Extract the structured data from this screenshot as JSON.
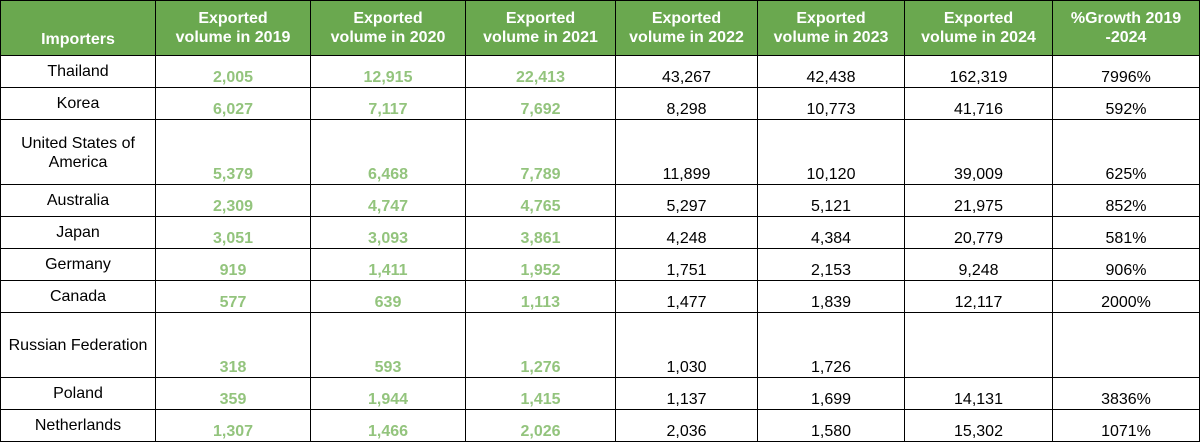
{
  "headers": [
    "Importers",
    "Exported volume in 2019",
    "Exported volume in 2020",
    "Exported volume in 2021",
    "Exported volume in 2022",
    "Exported volume in 2023",
    "Exported volume in 2024",
    "%Growth 2019 -2024"
  ],
  "header_lines": [
    [
      "Importers"
    ],
    [
      "Exported",
      "volume in 2019"
    ],
    [
      "Exported",
      "volume in 2020"
    ],
    [
      "Exported",
      "volume in 2021"
    ],
    [
      "Exported",
      "volume in 2022"
    ],
    [
      "Exported",
      "volume in 2023"
    ],
    [
      "Exported",
      "volume in 2024"
    ],
    [
      "%Growth 2019",
      "-2024"
    ]
  ],
  "rows": [
    {
      "importer": "Thailand",
      "v2019": "2,005",
      "v2020": "12,915",
      "v2021": "22,413",
      "v2022": "43,267",
      "v2023": "42,438",
      "v2024": "162,319",
      "growth": "7996%"
    },
    {
      "importer": "Korea",
      "v2019": "6,027",
      "v2020": "7,117",
      "v2021": "7,692",
      "v2022": "8,298",
      "v2023": "10,773",
      "v2024": "41,716",
      "growth": "592%"
    },
    {
      "importer": "United States of America",
      "v2019": "5,379",
      "v2020": "6,468",
      "v2021": "7,789",
      "v2022": "11,899",
      "v2023": "10,120",
      "v2024": "39,009",
      "growth": "625%"
    },
    {
      "importer": "Australia",
      "v2019": "2,309",
      "v2020": "4,747",
      "v2021": "4,765",
      "v2022": "5,297",
      "v2023": "5,121",
      "v2024": "21,975",
      "growth": "852%"
    },
    {
      "importer": "Japan",
      "v2019": "3,051",
      "v2020": "3,093",
      "v2021": "3,861",
      "v2022": "4,248",
      "v2023": "4,384",
      "v2024": "20,779",
      "growth": "581%"
    },
    {
      "importer": "Germany",
      "v2019": "919",
      "v2020": "1,411",
      "v2021": "1,952",
      "v2022": "1,751",
      "v2023": "2,153",
      "v2024": "9,248",
      "growth": "906%"
    },
    {
      "importer": "Canada",
      "v2019": "577",
      "v2020": "639",
      "v2021": "1,113",
      "v2022": "1,477",
      "v2023": "1,839",
      "v2024": "12,117",
      "growth": "2000%"
    },
    {
      "importer": "Russian Federation",
      "v2019": "318",
      "v2020": "593",
      "v2021": "1,276",
      "v2022": "1,030",
      "v2023": "1,726",
      "v2024": "",
      "growth": ""
    },
    {
      "importer": "Poland",
      "v2019": "359",
      "v2020": "1,944",
      "v2021": "1,415",
      "v2022": "1,137",
      "v2023": "1,699",
      "v2024": "14,131",
      "growth": "3836%"
    },
    {
      "importer": "Netherlands",
      "v2019": "1,307",
      "v2020": "1,466",
      "v2021": "2,026",
      "v2022": "2,036",
      "v2023": "1,580",
      "v2024": "15,302",
      "growth": "1071%"
    }
  ],
  "colors": {
    "header_background": "#6aa84f",
    "header_text": "#ffffff",
    "highlight_text": "#93c47d",
    "body_text": "#000000",
    "border": "#000000"
  }
}
